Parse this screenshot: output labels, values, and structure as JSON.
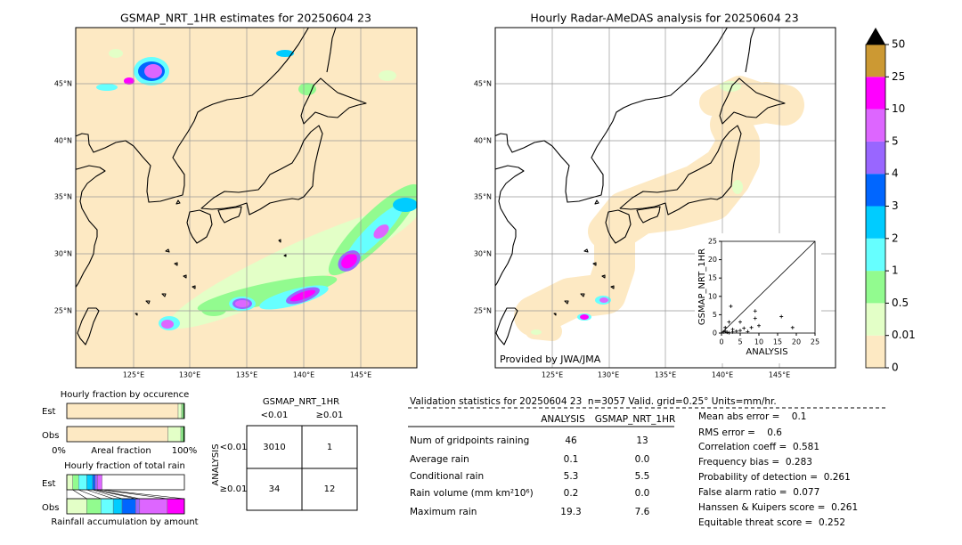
{
  "left_map": {
    "title": "GSMAP_NRT_1HR estimates for 20250604 23",
    "lat_labels": [
      "45°N",
      "40°N",
      "35°N",
      "30°N",
      "25°N"
    ],
    "lon_labels": [
      "125°E",
      "130°E",
      "135°E",
      "140°E",
      "145°E"
    ]
  },
  "right_map": {
    "title": "Hourly Radar-AMeDAS analysis for 20250604 23",
    "lat_labels": [
      "45°N",
      "40°N",
      "35°N",
      "30°N",
      "25°N"
    ],
    "lon_labels": [
      "125°E",
      "130°E",
      "135°E",
      "140°E",
      "145°E"
    ],
    "credit": "Provided by JWA/JMA"
  },
  "scatter": {
    "type": "scatter",
    "xlabel": "ANALYSIS",
    "ylabel": "GSMAP_NRT_1HR",
    "xlim": [
      0,
      25
    ],
    "ylim": [
      0,
      25
    ],
    "xticks": [
      0,
      5,
      10,
      15,
      20,
      25
    ],
    "yticks": [
      0,
      5,
      10,
      15,
      20,
      25
    ],
    "x": [
      0.5,
      1,
      1.5,
      2,
      2.5,
      3,
      3,
      4,
      5,
      5,
      6,
      7,
      8,
      9,
      9,
      10,
      16,
      19,
      1,
      2
    ],
    "y": [
      0.3,
      0.5,
      0.2,
      0.1,
      7.3,
      1,
      0.3,
      0.5,
      0.7,
      3,
      1.3,
      0.4,
      1.5,
      6,
      4,
      2,
      4.5,
      1.5,
      1.5,
      3
    ],
    "color": "#000000"
  },
  "colorbar": {
    "levels": [
      0,
      0.01,
      0.5,
      1,
      2,
      3,
      4,
      5,
      10,
      25,
      50
    ],
    "colors": [
      "#fde9c3",
      "#e3ffc7",
      "#92fb8f",
      "#66ffff",
      "#00ccff",
      "#0066ff",
      "#9966ff",
      "#dd66ff",
      "#ff00ff",
      "#cc9933"
    ],
    "over_color": "#000000"
  },
  "occurrence": {
    "title": "Hourly fraction by occurence",
    "rows": [
      "Est",
      "Obs"
    ],
    "axis_left": "0%",
    "axis_mid": "Areal fraction",
    "axis_right": "100%",
    "colors": [
      "#fde9c3",
      "#e3ffc7",
      "#92fb8f",
      "#006400"
    ],
    "est": [
      94.7,
      3.0,
      1.5,
      0.8
    ],
    "obs": [
      86.0,
      11.0,
      2.0,
      1.0
    ]
  },
  "total_rain": {
    "title": "Hourly fraction of total rain",
    "rows": [
      "Est",
      "Obs"
    ],
    "footer": "Rainfall accumulation by amount",
    "colors": [
      "#e3ffc7",
      "#92fb8f",
      "#66ffff",
      "#00ccff",
      "#0066ff",
      "#9966ff",
      "#dd66ff",
      "#ff00ff"
    ],
    "est": [
      5,
      5,
      7,
      5,
      2,
      2,
      4,
      0
    ],
    "obs": [
      17,
      12,
      10.5,
      7.5,
      11.5,
      3.5,
      23.5,
      14.5
    ]
  },
  "contingency": {
    "title": "GSMAP_NRT_1HR",
    "col_headers": [
      "<0.01",
      "≥0.01"
    ],
    "row_label": "ANALYSIS",
    "row_headers": [
      "<0.01",
      "≥0.01"
    ],
    "cells": [
      [
        "3010",
        "1"
      ],
      [
        "34",
        "12"
      ]
    ]
  },
  "validation": {
    "header": "Validation statistics for 20250604 23  n=3057 Valid. grid=0.25° Units=mm/hr.",
    "columns": [
      "ANALYSIS",
      "GSMAP_NRT_1HR"
    ],
    "rows": [
      [
        "Num of gridpoints raining",
        "46",
        "13"
      ],
      [
        "Average rain",
        "0.1",
        "0.0"
      ],
      [
        "Conditional rain",
        "5.3",
        "5.5"
      ],
      [
        "Rain volume (mm km²10⁶)",
        "0.2",
        "0.0"
      ],
      [
        "Maximum rain",
        "19.3",
        "7.6"
      ]
    ],
    "scores": [
      "Mean abs error =    0.1",
      "RMS error =    0.6",
      "Correlation coeff =  0.581",
      "Frequency bias =  0.283",
      "Probability of detection =  0.261",
      "False alarm ratio =  0.077",
      "Hanssen & Kuipers score =  0.261",
      "Equitable threat score =  0.252"
    ]
  }
}
